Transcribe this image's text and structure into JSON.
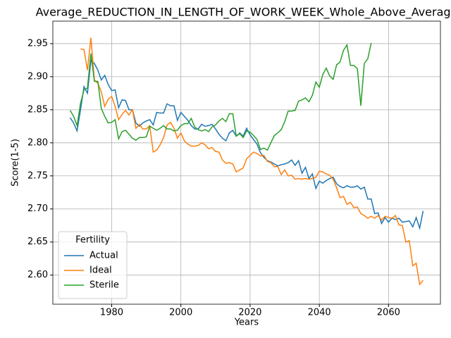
{
  "chart_data": {
    "type": "line",
    "title": "Average_REDUCTION_IN_LENGTH_OF_WORK_WEEK_Whole_Above_Average",
    "xlabel": "Years",
    "ylabel": "Score(1-5)",
    "x": [
      1968,
      1969,
      1970,
      1971,
      1972,
      1973,
      1974,
      1975,
      1976,
      1977,
      1978,
      1979,
      1980,
      1981,
      1982,
      1983,
      1984,
      1985,
      1986,
      1987,
      1988,
      1989,
      1990,
      1991,
      1992,
      1993,
      1994,
      1995,
      1996,
      1997,
      1998,
      1999,
      2000,
      2001,
      2002,
      2003,
      2004,
      2005,
      2006,
      2007,
      2008,
      2009,
      2010,
      2011,
      2012,
      2013,
      2014,
      2015,
      2016,
      2017,
      2018,
      2019,
      2020,
      2021,
      2022,
      2023,
      2024,
      2025,
      2026,
      2027,
      2028,
      2029,
      2030,
      2031,
      2032,
      2033,
      2034,
      2035,
      2036,
      2037,
      2038,
      2039,
      2040,
      2041,
      2042,
      2043,
      2044,
      2045,
      2046,
      2047,
      2048,
      2049,
      2050,
      2051,
      2052,
      2053,
      2054,
      2055,
      2056,
      2057,
      2058,
      2059,
      2060,
      2061,
      2062,
      2063,
      2064,
      2065,
      2066,
      2067,
      2068,
      2069,
      2070
    ],
    "series": [
      {
        "name": "Actual",
        "color": "#1f77b4",
        "values": [
          2.838,
          2.83,
          2.818,
          2.85,
          2.885,
          2.875,
          2.925,
          2.92,
          2.91,
          2.895,
          2.902,
          2.888,
          2.879,
          2.88,
          2.853,
          2.865,
          2.864,
          2.85,
          2.85,
          2.83,
          2.825,
          2.83,
          2.833,
          2.835,
          2.827,
          2.846,
          2.845,
          2.845,
          2.859,
          2.856,
          2.856,
          2.834,
          2.846,
          2.84,
          2.834,
          2.826,
          2.821,
          2.821,
          2.828,
          2.825,
          2.826,
          2.828,
          2.821,
          2.813,
          2.807,
          2.803,
          2.815,
          2.819,
          2.81,
          2.815,
          2.81,
          2.822,
          2.812,
          2.805,
          2.798,
          2.785,
          2.778,
          2.773,
          2.771,
          2.768,
          2.765,
          2.767,
          2.768,
          2.77,
          2.774,
          2.766,
          2.773,
          2.754,
          2.763,
          2.746,
          2.753,
          2.731,
          2.742,
          2.739,
          2.743,
          2.746,
          2.748,
          2.738,
          2.734,
          2.732,
          2.735,
          2.733,
          2.733,
          2.735,
          2.73,
          2.733,
          2.715,
          2.715,
          2.693,
          2.694,
          2.678,
          2.687,
          2.68,
          2.686,
          2.684,
          2.686,
          2.68,
          2.681,
          2.682,
          2.673,
          2.687,
          2.671,
          2.697
        ]
      },
      {
        "name": "Ideal",
        "color": "#ff7f0e",
        "values": [
          null,
          null,
          null,
          2.942,
          2.941,
          2.91,
          2.959,
          2.895,
          2.89,
          2.877,
          2.855,
          2.866,
          2.87,
          2.855,
          2.835,
          2.843,
          2.849,
          2.842,
          2.85,
          2.822,
          2.828,
          2.821,
          2.821,
          2.826,
          2.786,
          2.789,
          2.797,
          2.808,
          2.827,
          2.831,
          2.822,
          2.807,
          2.815,
          2.803,
          2.798,
          2.795,
          2.795,
          2.796,
          2.8,
          2.797,
          2.791,
          2.793,
          2.787,
          2.786,
          2.774,
          2.769,
          2.77,
          2.768,
          2.756,
          2.759,
          2.762,
          2.776,
          2.781,
          2.786,
          2.784,
          2.78,
          2.781,
          2.772,
          2.77,
          2.764,
          2.764,
          2.752,
          2.759,
          2.75,
          2.751,
          2.745,
          2.746,
          2.745,
          2.746,
          2.745,
          2.746,
          2.748,
          2.757,
          2.756,
          2.753,
          2.751,
          2.745,
          2.732,
          2.717,
          2.719,
          2.707,
          2.71,
          2.702,
          2.703,
          2.693,
          2.69,
          2.686,
          2.689,
          2.686,
          2.69,
          2.683,
          2.689,
          2.687,
          2.686,
          2.69,
          2.676,
          2.675,
          2.65,
          2.652,
          2.614,
          2.618,
          2.586,
          2.592
        ]
      },
      {
        "name": "Sterile",
        "color": "#2ca02c",
        "values": [
          2.849,
          2.84,
          2.826,
          2.86,
          2.88,
          2.883,
          2.935,
          2.893,
          2.893,
          2.852,
          2.84,
          2.83,
          2.831,
          2.835,
          2.806,
          2.817,
          2.819,
          2.813,
          2.807,
          2.804,
          2.808,
          2.808,
          2.809,
          2.825,
          2.822,
          2.819,
          2.822,
          2.826,
          2.821,
          2.821,
          2.818,
          2.819,
          2.826,
          2.829,
          2.829,
          2.837,
          2.824,
          2.82,
          2.818,
          2.82,
          2.817,
          2.824,
          2.827,
          2.833,
          2.837,
          2.832,
          2.844,
          2.844,
          2.81,
          2.814,
          2.808,
          2.818,
          2.816,
          2.811,
          2.805,
          2.79,
          2.792,
          2.789,
          2.8,
          2.811,
          2.815,
          2.82,
          2.832,
          2.848,
          2.848,
          2.849,
          2.863,
          2.865,
          2.868,
          2.862,
          2.872,
          2.892,
          2.884,
          2.903,
          2.913,
          2.901,
          2.896,
          2.918,
          2.922,
          2.94,
          2.948,
          2.917,
          2.917,
          2.912,
          2.856,
          2.92,
          2.927,
          2.951,
          null,
          null,
          null,
          null,
          null,
          null,
          null,
          null,
          null,
          null,
          null,
          null,
          null,
          null,
          null
        ]
      }
    ],
    "xlim": [
      1963,
      2075
    ],
    "ylim": [
      2.556,
      2.984
    ],
    "xticks": [
      1980,
      2000,
      2020,
      2040,
      2060
    ],
    "yticks": [
      {
        "value": 2.6,
        "label": "2.60"
      },
      2.65,
      {
        "value": 2.7,
        "label": "2.70"
      },
      2.75,
      {
        "value": 2.8,
        "label": "2.80"
      },
      2.85,
      {
        "value": 2.9,
        "label": "2.90"
      },
      2.95
    ],
    "grid": true,
    "legend_title": "Fertility",
    "legend_loc": "lower left"
  }
}
